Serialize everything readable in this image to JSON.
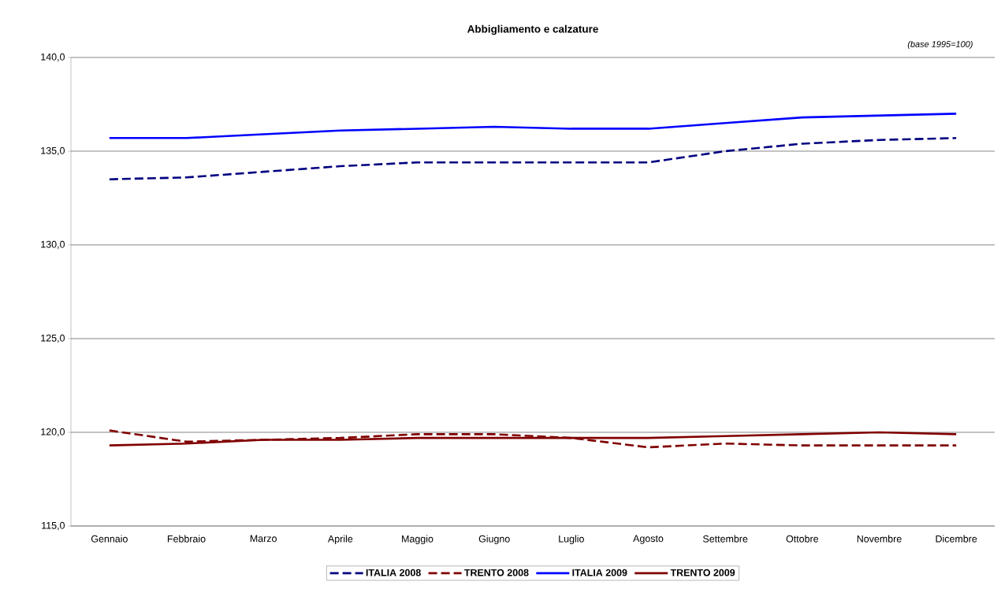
{
  "chart_data": {
    "type": "line",
    "title": "Abbigliamento e calzature",
    "annotations": [
      "(base 1995=100)"
    ],
    "categories": [
      "Gennaio",
      "Febbraio",
      "Marzo",
      "Aprile",
      "Maggio",
      "Giugno",
      "Luglio",
      "Agosto",
      "Settembre",
      "Ottobre",
      "Novembre",
      "Dicembre"
    ],
    "series": [
      {
        "name": "ITALIA 2008",
        "color": "#000080",
        "line_style": "dashed",
        "values": [
          133.5,
          133.6,
          133.9,
          134.2,
          134.4,
          134.4,
          134.4,
          134.4,
          135.0,
          135.4,
          135.6,
          135.7
        ]
      },
      {
        "name": "TRENTO 2008",
        "color": "#800000",
        "line_style": "dashed",
        "values": [
          120.1,
          119.5,
          119.6,
          119.7,
          119.9,
          119.9,
          119.7,
          119.2,
          119.4,
          119.3,
          119.3,
          119.3
        ]
      },
      {
        "name": "ITALIA 2009",
        "color": "#0000ff",
        "line_style": "solid",
        "values": [
          135.7,
          135.7,
          135.9,
          136.1,
          136.2,
          136.3,
          136.2,
          136.2,
          136.5,
          136.8,
          136.9,
          137.0
        ]
      },
      {
        "name": "TRENTO 2009",
        "color": "#800000",
        "line_style": "solid",
        "values": [
          119.3,
          119.4,
          119.6,
          119.6,
          119.7,
          119.7,
          119.7,
          119.7,
          119.8,
          119.9,
          120.0,
          119.9
        ]
      }
    ],
    "ylim": [
      115,
      140
    ],
    "yticks": [
      {
        "value": 115,
        "label": "115,0"
      },
      {
        "value": 120,
        "label": "120,0"
      },
      {
        "value": 125,
        "label": "125,0"
      },
      {
        "value": 130,
        "label": "130,0"
      },
      {
        "value": 135,
        "label": "135,0"
      },
      {
        "value": 140,
        "label": "140,0"
      }
    ],
    "grid": "y",
    "legend": "bottom",
    "marker": "none"
  }
}
